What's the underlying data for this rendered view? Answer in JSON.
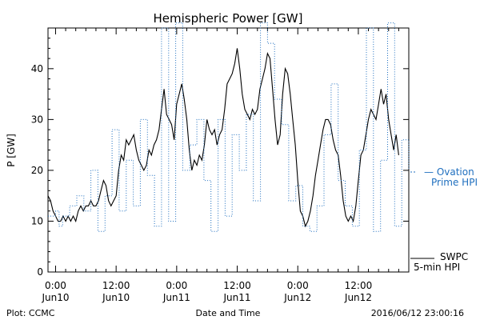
{
  "chart_data": {
    "type": "line",
    "title": "Hemispheric Power [GW]",
    "ylabel": "P [GW]",
    "xlabel": "Date and Time",
    "ylim": [
      0,
      48
    ],
    "xlim_hours": [
      -1.5,
      70
    ],
    "yticks": [
      0,
      10,
      20,
      30,
      40
    ],
    "x_ticks": [
      {
        "hours": 0,
        "time": "0:00",
        "date": "Jun10"
      },
      {
        "hours": 12,
        "time": "12:00",
        "date": "Jun10"
      },
      {
        "hours": 24,
        "time": "0:00",
        "date": "Jun11"
      },
      {
        "hours": 36,
        "time": "12:00",
        "date": "Jun11"
      },
      {
        "hours": 48,
        "time": "0:00",
        "date": "Jun12"
      },
      {
        "hours": 60,
        "time": "12:00",
        "date": "Jun12"
      }
    ],
    "series": [
      {
        "name": "SWPC 5-min HPI",
        "color": "#000000",
        "style": "solid",
        "points": [
          [
            -1.5,
            15
          ],
          [
            -1,
            14
          ],
          [
            -0.5,
            12
          ],
          [
            0,
            11
          ],
          [
            0.5,
            10
          ],
          [
            1,
            10
          ],
          [
            1.5,
            11
          ],
          [
            2,
            10
          ],
          [
            2.5,
            11
          ],
          [
            3,
            10
          ],
          [
            3.5,
            11
          ],
          [
            4,
            10
          ],
          [
            4.5,
            12
          ],
          [
            5,
            13
          ],
          [
            5.5,
            12
          ],
          [
            6,
            13
          ],
          [
            6.5,
            13
          ],
          [
            7,
            14
          ],
          [
            7.5,
            13
          ],
          [
            8,
            13
          ],
          [
            8.5,
            14
          ],
          [
            9,
            16
          ],
          [
            9.5,
            18
          ],
          [
            10,
            17
          ],
          [
            10.5,
            14
          ],
          [
            11,
            13
          ],
          [
            11.5,
            14
          ],
          [
            12,
            15
          ],
          [
            12.5,
            20
          ],
          [
            13,
            23
          ],
          [
            13.5,
            22
          ],
          [
            14,
            26
          ],
          [
            14.5,
            25
          ],
          [
            15,
            26
          ],
          [
            15.5,
            27
          ],
          [
            16,
            24
          ],
          [
            16.5,
            22
          ],
          [
            17,
            21
          ],
          [
            17.5,
            20
          ],
          [
            18,
            21
          ],
          [
            18.5,
            24
          ],
          [
            19,
            23
          ],
          [
            19.5,
            25
          ],
          [
            20,
            26
          ],
          [
            20.5,
            28
          ],
          [
            21,
            32
          ],
          [
            21.5,
            36
          ],
          [
            22,
            31
          ],
          [
            22.5,
            30
          ],
          [
            23,
            29
          ],
          [
            23.5,
            26
          ],
          [
            24,
            33
          ],
          [
            24.5,
            35
          ],
          [
            25,
            37
          ],
          [
            25.5,
            34
          ],
          [
            26,
            30
          ],
          [
            26.5,
            24
          ],
          [
            27,
            20
          ],
          [
            27.5,
            22
          ],
          [
            28,
            21
          ],
          [
            28.5,
            23
          ],
          [
            29,
            22
          ],
          [
            29.5,
            25
          ],
          [
            30,
            30
          ],
          [
            30.5,
            28
          ],
          [
            31,
            27
          ],
          [
            31.5,
            28
          ],
          [
            32,
            25
          ],
          [
            32.5,
            27
          ],
          [
            33,
            28
          ],
          [
            33.5,
            32
          ],
          [
            34,
            37
          ],
          [
            34.5,
            38
          ],
          [
            35,
            39
          ],
          [
            35.5,
            41
          ],
          [
            36,
            44
          ],
          [
            36.5,
            40
          ],
          [
            37,
            35
          ],
          [
            37.5,
            32
          ],
          [
            38,
            31
          ],
          [
            38.5,
            30
          ],
          [
            39,
            32
          ],
          [
            39.5,
            31
          ],
          [
            40,
            32
          ],
          [
            40.5,
            36
          ],
          [
            41,
            38
          ],
          [
            41.5,
            40
          ],
          [
            42,
            43
          ],
          [
            42.5,
            42
          ],
          [
            43,
            36
          ],
          [
            43.5,
            30
          ],
          [
            44,
            25
          ],
          [
            44.5,
            27
          ],
          [
            45,
            35
          ],
          [
            45.5,
            40
          ],
          [
            46,
            39
          ],
          [
            46.5,
            35
          ],
          [
            47,
            30
          ],
          [
            47.5,
            25
          ],
          [
            48,
            18
          ],
          [
            48.5,
            12
          ],
          [
            49,
            11
          ],
          [
            49.5,
            9
          ],
          [
            50,
            10
          ],
          [
            50.5,
            12
          ],
          [
            51,
            15
          ],
          [
            51.5,
            19
          ],
          [
            52,
            22
          ],
          [
            52.5,
            25
          ],
          [
            53,
            28
          ],
          [
            53.5,
            30
          ],
          [
            54,
            30
          ],
          [
            54.5,
            29
          ],
          [
            55,
            26
          ],
          [
            55.5,
            24
          ],
          [
            56,
            23
          ],
          [
            56.5,
            19
          ],
          [
            57,
            14
          ],
          [
            57.5,
            11
          ],
          [
            58,
            10
          ],
          [
            58.5,
            11
          ],
          [
            59,
            10
          ],
          [
            59.5,
            13
          ],
          [
            60,
            18
          ],
          [
            60.5,
            23
          ],
          [
            61,
            24
          ],
          [
            61.5,
            27
          ],
          [
            62,
            30
          ],
          [
            62.5,
            32
          ],
          [
            63,
            31
          ],
          [
            63.5,
            30
          ],
          [
            64,
            33
          ],
          [
            64.5,
            36
          ],
          [
            65,
            33
          ],
          [
            65.5,
            35
          ],
          [
            66,
            30
          ],
          [
            66.5,
            27
          ],
          [
            67,
            24
          ],
          [
            67.5,
            27
          ],
          [
            68,
            23
          ]
        ]
      },
      {
        "name": "Ovation Prime HPI",
        "color": "#1f6fbf",
        "style": "dotted-step",
        "points": [
          [
            -1.5,
            11
          ],
          [
            0,
            12
          ],
          [
            0.7,
            9
          ],
          [
            1.4,
            11
          ],
          [
            2.8,
            13
          ],
          [
            4.2,
            15
          ],
          [
            5.6,
            12
          ],
          [
            7,
            20
          ],
          [
            8.4,
            8
          ],
          [
            9.8,
            15
          ],
          [
            11.2,
            28
          ],
          [
            12.6,
            12
          ],
          [
            14,
            22
          ],
          [
            15.4,
            13
          ],
          [
            16.8,
            30
          ],
          [
            18.2,
            19
          ],
          [
            19.6,
            9
          ],
          [
            21,
            48
          ],
          [
            22.4,
            10
          ],
          [
            23.8,
            49
          ],
          [
            25.2,
            20
          ],
          [
            26.6,
            25
          ],
          [
            28,
            30
          ],
          [
            29.4,
            18
          ],
          [
            30.8,
            8
          ],
          [
            32.2,
            30
          ],
          [
            33.6,
            11
          ],
          [
            35,
            27
          ],
          [
            36.4,
            20
          ],
          [
            37.8,
            31
          ],
          [
            39.2,
            14
          ],
          [
            40.6,
            49
          ],
          [
            42,
            45
          ],
          [
            43.4,
            34
          ],
          [
            44.8,
            29
          ],
          [
            46.2,
            14
          ],
          [
            47.6,
            17
          ],
          [
            49,
            9
          ],
          [
            50.4,
            8
          ],
          [
            51.8,
            13
          ],
          [
            53.2,
            27
          ],
          [
            54.6,
            37
          ],
          [
            56,
            18
          ],
          [
            57.4,
            13
          ],
          [
            58.8,
            9
          ],
          [
            60.2,
            24
          ],
          [
            61.6,
            48
          ],
          [
            63,
            8
          ],
          [
            64.4,
            22
          ],
          [
            65.8,
            49
          ],
          [
            67.2,
            9
          ],
          [
            68.6,
            26
          ],
          [
            70,
            20
          ]
        ]
      }
    ],
    "legend": [
      {
        "line1": "— Ovation",
        "line2": "Prime HPI",
        "color": "#1f6fbf"
      },
      {
        "line1": "SWPC",
        "line2": "5-min HPI",
        "color": "#000000"
      }
    ],
    "footer_left": "Plot: CCMC",
    "footer_right": "2016/06/12 23:00:16"
  }
}
